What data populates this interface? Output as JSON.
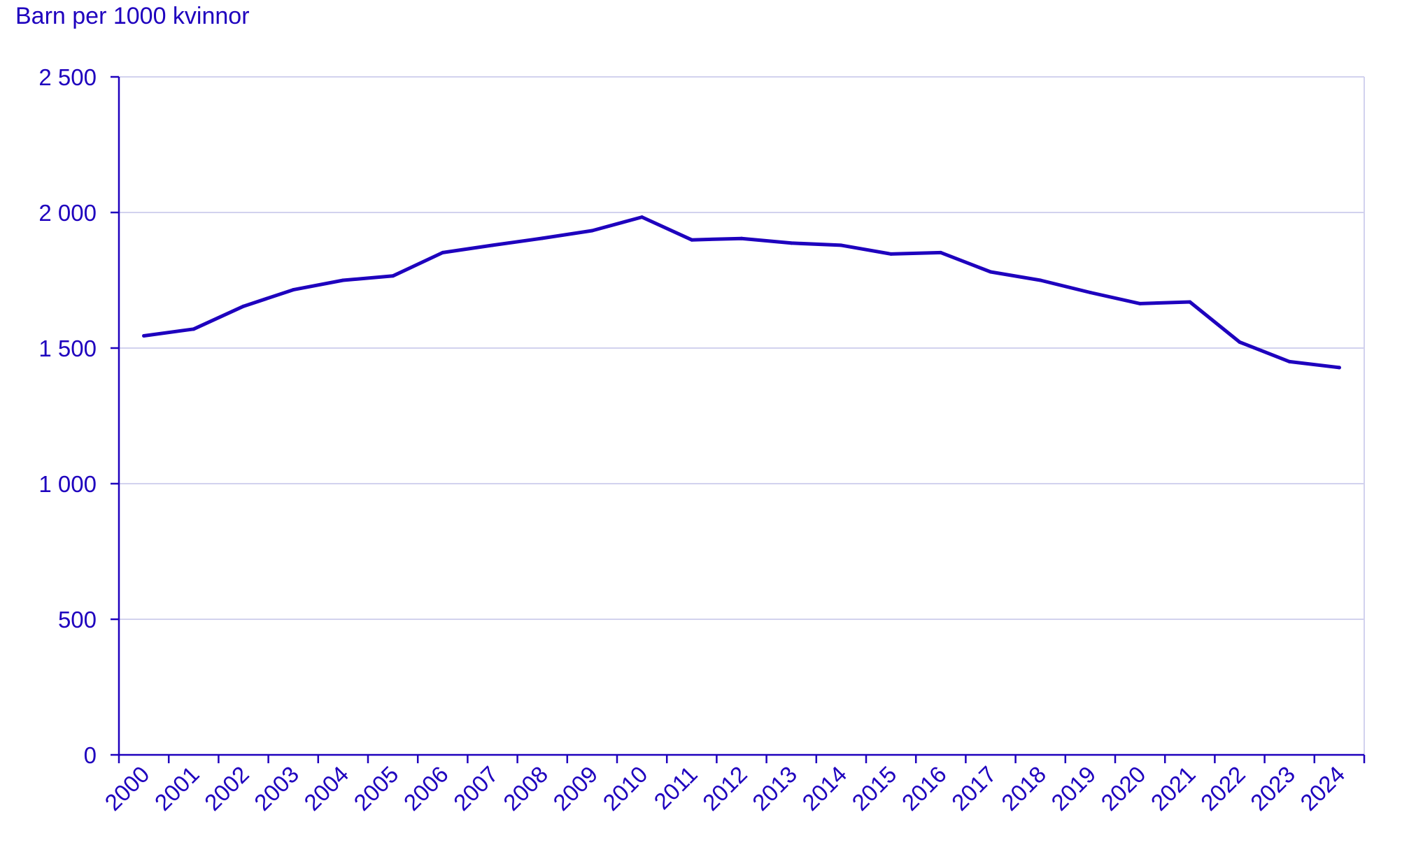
{
  "chart_data": {
    "type": "line",
    "title": "",
    "ylabel": "Barn per 1000 kvinnor",
    "xlabel": "",
    "categories": [
      "2000",
      "2001",
      "2002",
      "2003",
      "2004",
      "2005",
      "2006",
      "2007",
      "2008",
      "2009",
      "2010",
      "2011",
      "2012",
      "2013",
      "2014",
      "2015",
      "2016",
      "2017",
      "2018",
      "2019",
      "2020",
      "2021",
      "2022",
      "2023",
      "2024"
    ],
    "series": [
      {
        "values": [
          1545,
          1570,
          1654,
          1715,
          1750,
          1766,
          1852,
          1879,
          1905,
          1933,
          1983,
          1899,
          1904,
          1887,
          1879,
          1847,
          1852,
          1781,
          1750,
          1705,
          1664,
          1670,
          1522,
          1450,
          1428
        ]
      }
    ],
    "ylim": [
      0,
      2500
    ],
    "yticks": [
      0,
      500,
      1000,
      1500,
      2000,
      2500
    ],
    "ytick_labels": [
      "0",
      "500",
      "1 000",
      "1 500",
      "2 000",
      "2 500"
    ],
    "grid": true,
    "legend": "none",
    "colors": {
      "line": "#1e00be",
      "axis": "#1e00be",
      "grid": "#d2d2ee",
      "text": "#1e00be"
    }
  }
}
